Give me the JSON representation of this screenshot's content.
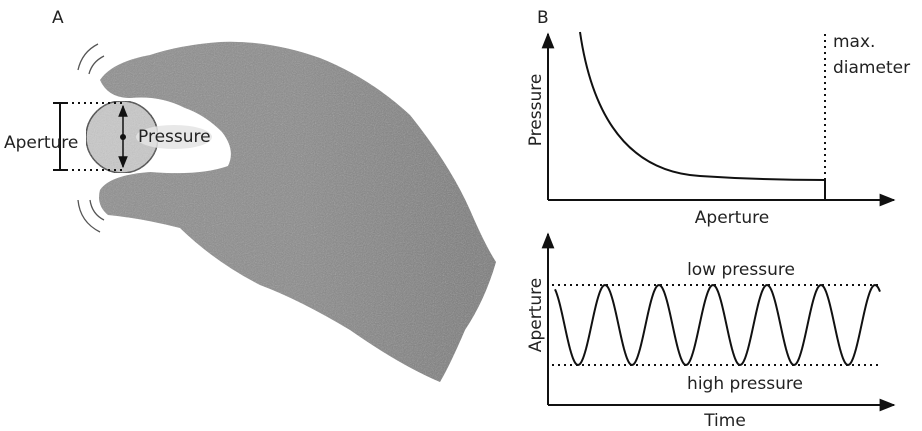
{
  "panel_a": {
    "label": "A",
    "aperture_label": "Aperture",
    "pressure_label": "Pressure"
  },
  "panel_b": {
    "label": "B",
    "top_plot": {
      "y_label": "Pressure",
      "x_label": "Aperture",
      "annotation": [
        "max.",
        "diameter"
      ]
    },
    "bottom_plot": {
      "y_label": "Aperture",
      "x_label": "Time",
      "upper_line_label": "low pressure",
      "lower_line_label": "high pressure"
    }
  }
}
